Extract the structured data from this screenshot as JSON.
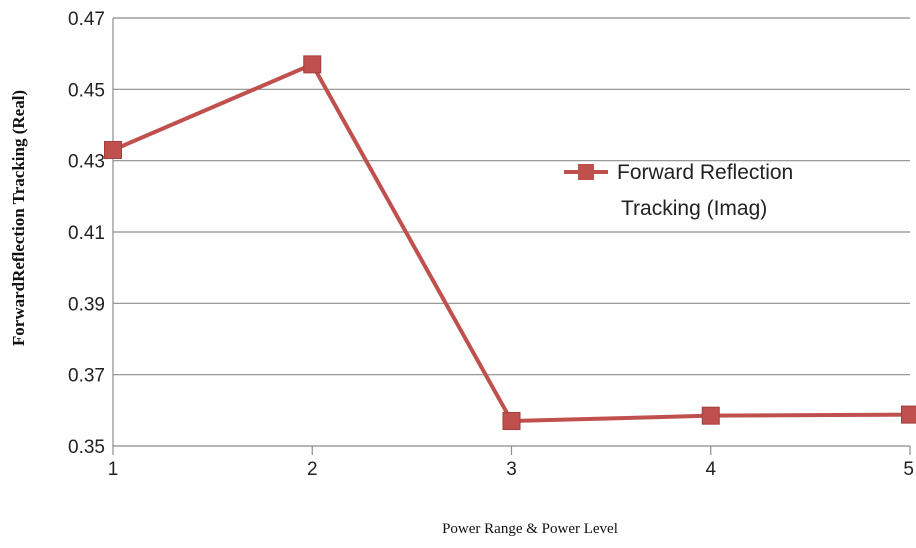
{
  "chart_data": {
    "type": "line",
    "title": "",
    "xlabel": "Power Range & Power Level",
    "ylabel": "ForwardReflection Tracking (Real)",
    "x": [
      1,
      2,
      3,
      4,
      5
    ],
    "x_tick_labels": [
      "1",
      "2",
      "3",
      "4",
      "5"
    ],
    "ylim": [
      0.35,
      0.47
    ],
    "y_ticks": [
      0.35,
      0.37,
      0.39,
      0.41,
      0.43,
      0.45,
      0.47
    ],
    "y_tick_labels": [
      "0.35",
      "0.37",
      "0.39",
      "0.41",
      "0.43",
      "0.45",
      "0.47"
    ],
    "grid": "horizontal",
    "legend_position": "right",
    "series": [
      {
        "name_lines": [
          "Forward Reflection",
          "Tracking (Imag)"
        ],
        "values": [
          0.433,
          0.457,
          0.357,
          0.3585,
          0.3588
        ],
        "color": "#c0504d",
        "marker": "square"
      }
    ]
  }
}
